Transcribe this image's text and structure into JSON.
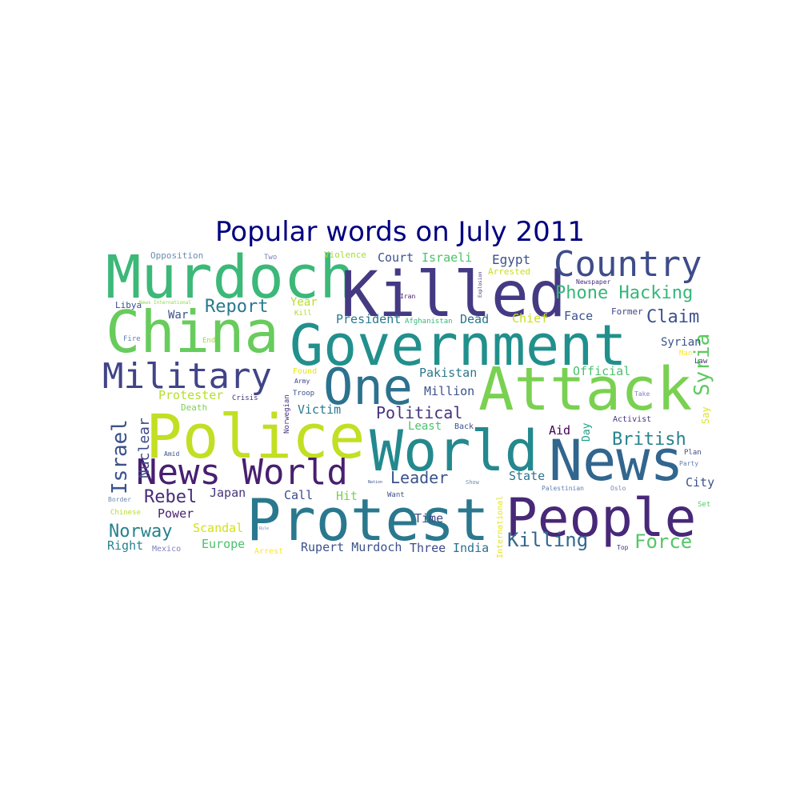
{
  "title": "Popular words on July 2011",
  "words": [
    {
      "text": "Murdoch",
      "color": "#3cb878"
    },
    {
      "text": "Killed",
      "color": "#443a83"
    },
    {
      "text": "Country",
      "color": "#3e4c8a"
    },
    {
      "text": "China",
      "color": "#67cc5c"
    },
    {
      "text": "Government",
      "color": "#21908d"
    },
    {
      "text": "Military",
      "color": "#414487"
    },
    {
      "text": "One",
      "color": "#2c728e"
    },
    {
      "text": "Attack",
      "color": "#7ad151"
    },
    {
      "text": "Police",
      "color": "#c2df23"
    },
    {
      "text": "World",
      "color": "#23898e"
    },
    {
      "text": "News",
      "color": "#31668e"
    },
    {
      "text": "News World",
      "color": "#481f70"
    },
    {
      "text": "Protest",
      "color": "#2a788e"
    },
    {
      "text": "People",
      "color": "#482878"
    },
    {
      "text": "Phone Hacking",
      "color": "#35b779"
    },
    {
      "text": "Report",
      "color": "#2a788e"
    },
    {
      "text": "Claim",
      "color": "#3b528b"
    },
    {
      "text": "Syria",
      "color": "#5ec962"
    },
    {
      "text": "British",
      "color": "#26828e"
    },
    {
      "text": "Israel",
      "color": "#3b528b"
    },
    {
      "text": "Nuclear",
      "color": "#3e4a89"
    },
    {
      "text": "Rebel",
      "color": "#472c7a"
    },
    {
      "text": "Norway",
      "color": "#26828e"
    },
    {
      "text": "Leader",
      "color": "#3b528b"
    },
    {
      "text": "Political",
      "color": "#46337e"
    },
    {
      "text": "Killing",
      "color": "#31688e"
    },
    {
      "text": "Force",
      "color": "#56c667"
    },
    {
      "text": "Opposition",
      "color": "#6b8cb0"
    },
    {
      "text": "Two",
      "color": "#7f7fbf"
    },
    {
      "text": "Violence",
      "color": "#a6db35"
    },
    {
      "text": "Court",
      "color": "#3b528b"
    },
    {
      "text": "Israeli",
      "color": "#4cc26c"
    },
    {
      "text": "Egypt",
      "color": "#3b528b"
    },
    {
      "text": "Arrested",
      "color": "#c7e020"
    },
    {
      "text": "Newspaper",
      "color": "#46307e"
    },
    {
      "text": "Libya",
      "color": "#3d4d8a"
    },
    {
      "text": "News International",
      "color": "#8fd744"
    },
    {
      "text": "Year",
      "color": "#b5de2b"
    },
    {
      "text": "Kill",
      "color": "#aadc32"
    },
    {
      "text": "Iran",
      "color": "#48186a"
    },
    {
      "text": "Explosion",
      "color": "#472d7b"
    },
    {
      "text": "War",
      "color": "#3b528b"
    },
    {
      "text": "President",
      "color": "#2a788e"
    },
    {
      "text": "Afghanistan",
      "color": "#35b779"
    },
    {
      "text": "Dead",
      "color": "#2c728e"
    },
    {
      "text": "Chief",
      "color": "#c8e020"
    },
    {
      "text": "Face",
      "color": "#3b528b"
    },
    {
      "text": "Former",
      "color": "#404688"
    },
    {
      "text": "Fire",
      "color": "#5f7fb0"
    },
    {
      "text": "End",
      "color": "#9fda3a"
    },
    {
      "text": "Syrian",
      "color": "#3b528b"
    },
    {
      "text": "Man",
      "color": "#fde725"
    },
    {
      "text": "Law",
      "color": "#46337e"
    },
    {
      "text": "Found",
      "color": "#e5e419"
    },
    {
      "text": "Army",
      "color": "#414487"
    },
    {
      "text": "Official",
      "color": "#4ac16d"
    },
    {
      "text": "Pakistan",
      "color": "#2a788e"
    },
    {
      "text": "Million",
      "color": "#3b528b"
    },
    {
      "text": "Protester",
      "color": "#b5de2b"
    },
    {
      "text": "Crisis",
      "color": "#46337e"
    },
    {
      "text": "Troop",
      "color": "#3b528b"
    },
    {
      "text": "Norwegian",
      "color": "#46307e"
    },
    {
      "text": "Take",
      "color": "#7f7fbf"
    },
    {
      "text": "Death",
      "color": "#7ad151"
    },
    {
      "text": "Victim",
      "color": "#2a788e"
    },
    {
      "text": "Activist",
      "color": "#46337e"
    },
    {
      "text": "Say",
      "color": "#dde318"
    },
    {
      "text": "Day",
      "color": "#1fa088"
    },
    {
      "text": "Aid",
      "color": "#440154"
    },
    {
      "text": "Back",
      "color": "#3b528b"
    },
    {
      "text": "Least",
      "color": "#4ac16d"
    },
    {
      "text": "Amid",
      "color": "#3b528b"
    },
    {
      "text": "Plan",
      "color": "#3e4a89"
    },
    {
      "text": "Party",
      "color": "#5f7fb0"
    },
    {
      "text": "Show",
      "color": "#6b8cb0"
    },
    {
      "text": "Want",
      "color": "#3b528b"
    },
    {
      "text": "Nation",
      "color": "#3b528b"
    },
    {
      "text": "Hit",
      "color": "#7ad151"
    },
    {
      "text": "Call",
      "color": "#3e4a89"
    },
    {
      "text": "Japan",
      "color": "#46337e"
    },
    {
      "text": "State",
      "color": "#2c728e"
    },
    {
      "text": "International",
      "color": "#e5e419"
    },
    {
      "text": "Palestinian",
      "color": "#5f7fb0"
    },
    {
      "text": "Oslo",
      "color": "#7f7fbf"
    },
    {
      "text": "City",
      "color": "#3b528b"
    },
    {
      "text": "Border",
      "color": "#6b8cb0"
    },
    {
      "text": "Chinese",
      "color": "#b5de2b"
    },
    {
      "text": "Power",
      "color": "#481f70"
    },
    {
      "text": "Set",
      "color": "#56c667"
    },
    {
      "text": "Scandal",
      "color": "#d2e21b"
    },
    {
      "text": "Time",
      "color": "#3e4a89"
    },
    {
      "text": "Rule",
      "color": "#7f7fbf"
    },
    {
      "text": "Right",
      "color": "#26828e"
    },
    {
      "text": "Mexico",
      "color": "#7f7fbf"
    },
    {
      "text": "Europe",
      "color": "#4ac16d"
    },
    {
      "text": "Arrest",
      "color": "#fde725"
    },
    {
      "text": "Rupert Murdoch",
      "color": "#3b528b"
    },
    {
      "text": "Three",
      "color": "#3e4a89"
    },
    {
      "text": "India",
      "color": "#2c728e"
    },
    {
      "text": "Top",
      "color": "#46337e"
    }
  ]
}
